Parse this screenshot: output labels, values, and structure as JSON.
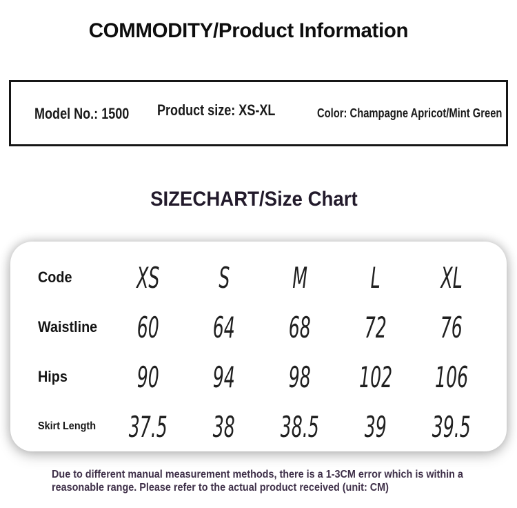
{
  "page": {
    "title": "COMMODITY/Product Information",
    "sizechart_title": "SIZECHART/Size Chart"
  },
  "product_info": {
    "model": "Model No.: 1500",
    "size": "Product size: XS-XL",
    "color": "Color: Champagne Apricot/Mint Green"
  },
  "size_table": {
    "rows": [
      {
        "label": "Code",
        "values": [
          "XS",
          "S",
          "M",
          "L",
          "XL"
        ]
      },
      {
        "label": "Waistline",
        "values": [
          "60",
          "64",
          "68",
          "72",
          "76"
        ]
      },
      {
        "label": "Hips",
        "values": [
          "90",
          "94",
          "98",
          "102",
          "106"
        ]
      },
      {
        "label": "Skirt Length",
        "values": [
          "37.5",
          "38",
          "38.5",
          "39",
          "39.5"
        ]
      }
    ],
    "unit": "CM"
  },
  "disclaimer": {
    "line1": "Due to different manual measurement methods, there is a 1-3CM error which is within a",
    "line2": "reasonable range. Please refer to the actual product received (unit: CM)"
  },
  "colors": {
    "title_text": "#0e0e0e",
    "sizechart_title_text": "#221a2b",
    "box_border": "#161616",
    "disclaimer_text": "#3f3049",
    "card_background": "#ffffff",
    "page_background": "#ffffff"
  }
}
